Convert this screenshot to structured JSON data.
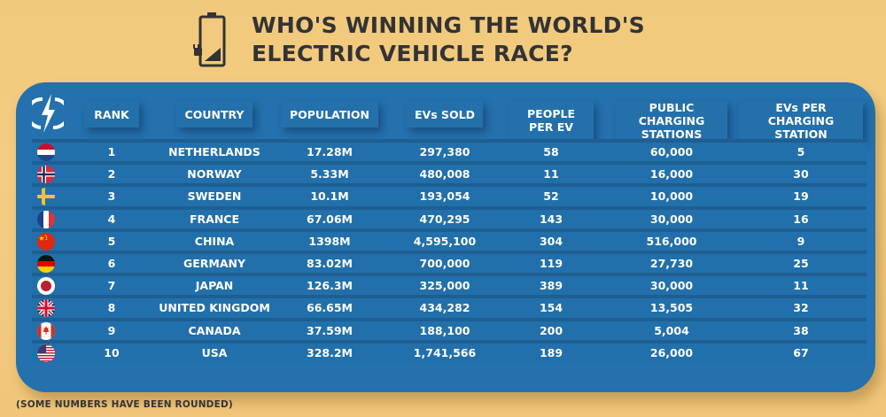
{
  "header": {
    "title_line1": "WHO'S WINNING THE WORLD'S",
    "title_line2": "ELECTRIC VEHICLE RACE?",
    "icon": "battery-charging-icon"
  },
  "table": {
    "corner_icon": "lightning-bolt-icon",
    "columns": [
      {
        "key": "rank",
        "label": "RANK"
      },
      {
        "key": "country",
        "label": "COUNTRY"
      },
      {
        "key": "population",
        "label": "POPULATION"
      },
      {
        "key": "evs_sold",
        "label": "EVs SOLD"
      },
      {
        "key": "people_per_ev",
        "label": "PEOPLE PER EV"
      },
      {
        "key": "public_charging_stations",
        "label": "PUBLIC CHARGING STATIONS"
      },
      {
        "key": "evs_per_charging_station",
        "label": "EVs PER CHARGING STATION"
      }
    ],
    "rows": [
      {
        "flag": "netherlands-flag-icon",
        "rank": "1",
        "country": "NETHERLANDS",
        "population": "17.28M",
        "evs_sold": "297,380",
        "people_per_ev": "58",
        "public_charging_stations": "60,000",
        "evs_per_charging_station": "5"
      },
      {
        "flag": "norway-flag-icon",
        "rank": "2",
        "country": "NORWAY",
        "population": "5.33M",
        "evs_sold": "480,008",
        "people_per_ev": "11",
        "public_charging_stations": "16,000",
        "evs_per_charging_station": "30"
      },
      {
        "flag": "sweden-flag-icon",
        "rank": "3",
        "country": "SWEDEN",
        "population": "10.1M",
        "evs_sold": "193,054",
        "people_per_ev": "52",
        "public_charging_stations": "10,000",
        "evs_per_charging_station": "19"
      },
      {
        "flag": "france-flag-icon",
        "rank": "4",
        "country": "FRANCE",
        "population": "67.06M",
        "evs_sold": "470,295",
        "people_per_ev": "143",
        "public_charging_stations": "30,000",
        "evs_per_charging_station": "16"
      },
      {
        "flag": "china-flag-icon",
        "rank": "5",
        "country": "CHINA",
        "population": "1398M",
        "evs_sold": "4,595,100",
        "people_per_ev": "304",
        "public_charging_stations": "516,000",
        "evs_per_charging_station": "9"
      },
      {
        "flag": "germany-flag-icon",
        "rank": "6",
        "country": "GERMANY",
        "population": "83.02M",
        "evs_sold": "700,000",
        "people_per_ev": "119",
        "public_charging_stations": "27,730",
        "evs_per_charging_station": "25"
      },
      {
        "flag": "japan-flag-icon",
        "rank": "7",
        "country": "JAPAN",
        "population": "126.3M",
        "evs_sold": "325,000",
        "people_per_ev": "389",
        "public_charging_stations": "30,000",
        "evs_per_charging_station": "11"
      },
      {
        "flag": "uk-flag-icon",
        "rank": "8",
        "country": "UNITED KINGDOM",
        "population": "66.65M",
        "evs_sold": "434,282",
        "people_per_ev": "154",
        "public_charging_stations": "13,505",
        "evs_per_charging_station": "32"
      },
      {
        "flag": "canada-flag-icon",
        "rank": "9",
        "country": "CANADA",
        "population": "37.59M",
        "evs_sold": "188,100",
        "people_per_ev": "200",
        "public_charging_stations": "5,004",
        "evs_per_charging_station": "38"
      },
      {
        "flag": "usa-flag-icon",
        "rank": "10",
        "country": "USA",
        "population": "328.2M",
        "evs_sold": "1,741,566",
        "people_per_ev": "189",
        "public_charging_stations": "26,000",
        "evs_per_charging_station": "67"
      }
    ]
  },
  "footnote": "(SOME NUMBERS HAVE BEEN ROUNDED)",
  "colors": {
    "background": "#f3ca7e",
    "panel": "#2471ad",
    "title": "#333335",
    "text_on_panel": "#ffffff"
  }
}
